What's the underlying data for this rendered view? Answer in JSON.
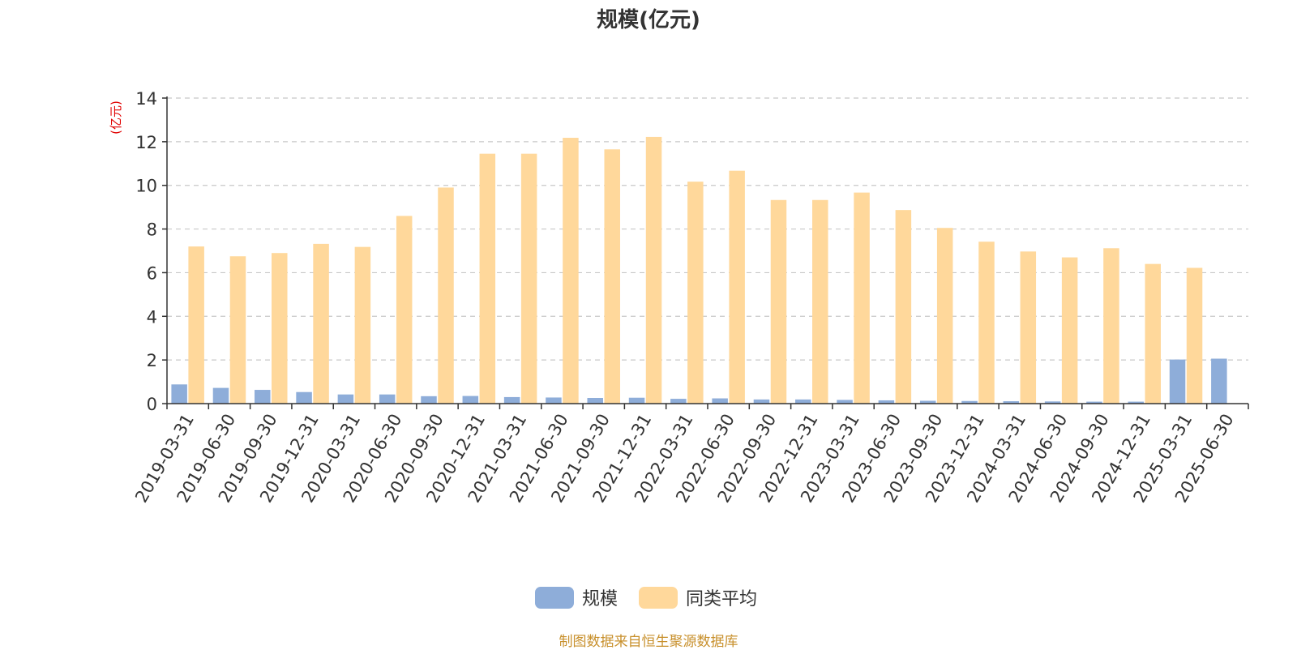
{
  "chart_data": {
    "type": "bar",
    "title": "规模(亿元)",
    "ylabel": "(亿元)",
    "xlabel": "",
    "ylim": [
      0,
      14
    ],
    "yticks": [
      0,
      2,
      4,
      6,
      8,
      10,
      12,
      14
    ],
    "grid": "horizontal dashed",
    "legend_position": "bottom-center",
    "categories": [
      "2019-03-31",
      "2019-06-30",
      "2019-09-30",
      "2019-12-31",
      "2020-03-31",
      "2020-06-30",
      "2020-09-30",
      "2020-12-31",
      "2021-03-31",
      "2021-06-30",
      "2021-09-30",
      "2021-12-31",
      "2022-03-31",
      "2022-06-30",
      "2022-09-30",
      "2022-12-31",
      "2023-03-31",
      "2023-06-30",
      "2023-09-30",
      "2023-12-31",
      "2024-03-31",
      "2024-06-30",
      "2024-09-30",
      "2024-12-31",
      "2025-03-31",
      "2025-06-30"
    ],
    "series": [
      {
        "name": "规模",
        "color": "#8eadd9",
        "values": [
          0.88,
          0.72,
          0.63,
          0.53,
          0.42,
          0.42,
          0.34,
          0.35,
          0.3,
          0.28,
          0.26,
          0.27,
          0.22,
          0.24,
          0.19,
          0.19,
          0.17,
          0.15,
          0.13,
          0.12,
          0.11,
          0.1,
          0.09,
          0.09,
          2.02,
          2.06
        ]
      },
      {
        "name": "同类平均",
        "color": "#ffd89b",
        "values": [
          7.2,
          6.75,
          6.9,
          7.32,
          7.18,
          8.6,
          9.9,
          11.45,
          11.45,
          12.18,
          11.65,
          12.22,
          10.17,
          10.67,
          9.33,
          9.33,
          9.67,
          8.87,
          8.05,
          7.42,
          6.97,
          6.7,
          7.12,
          6.4,
          6.22,
          null
        ]
      }
    ]
  },
  "footer": {
    "source": "制图数据来自恒生聚源数据库"
  }
}
